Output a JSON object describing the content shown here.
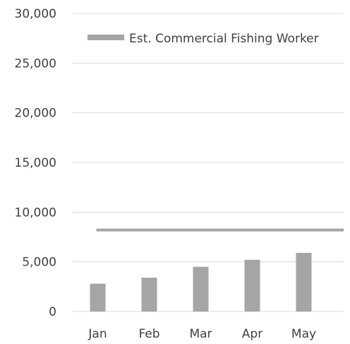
{
  "chart_data": {
    "type": "bar",
    "title": "",
    "xlabel": "",
    "ylabel": "",
    "categories": [
      "Jan",
      "Feb",
      "Mar",
      "Apr",
      "May"
    ],
    "y_ticks": [
      "0",
      "5,000",
      "10,000",
      "15,000",
      "20,000",
      "25,000",
      "30,000"
    ],
    "ylim": [
      0,
      30000
    ],
    "grid": true,
    "legend_position": "top-right",
    "series": [
      {
        "type": "bar",
        "values": [
          2800,
          3400,
          4500,
          5200,
          5900
        ],
        "color": "#a5a5a5"
      },
      {
        "name": "Est. Commercial Fishing Worker",
        "type": "line",
        "values": [
          8200,
          8200,
          8200,
          8200,
          8200
        ],
        "color": "#a5a5a5"
      }
    ]
  }
}
